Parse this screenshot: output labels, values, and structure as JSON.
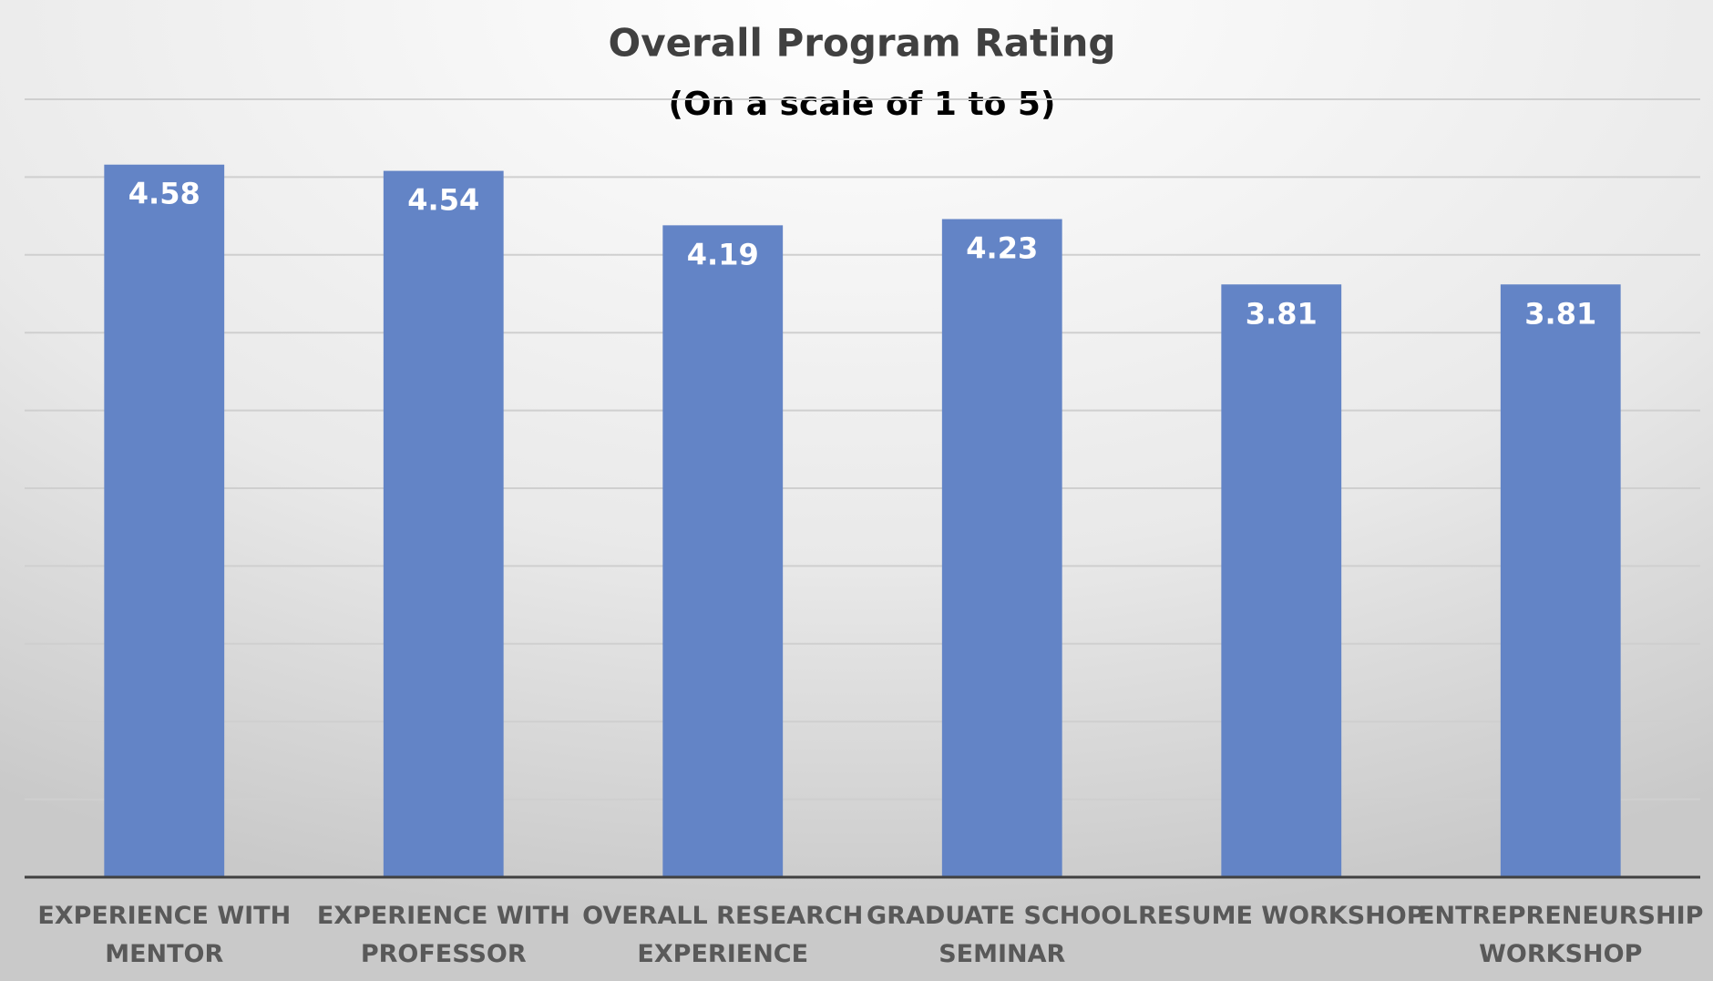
{
  "chart_data": {
    "type": "bar",
    "title": "Overall Program Rating",
    "subtitle": "(On a scale of 1 to 5)",
    "categories": [
      "EXPERIENCE WITH MENTOR",
      "EXPERIENCE WITH PROFESSOR",
      "OVERALL RESEARCH EXPERIENCE",
      "GRADUATE SCHOOL SEMINAR",
      "RESUME WORKSHOP",
      "ENTREPRENEURSHIP WORKSHOP"
    ],
    "values": [
      4.58,
      4.54,
      4.19,
      4.23,
      3.81,
      3.81
    ],
    "color": "#6384c6",
    "ylim": [
      0,
      5
    ],
    "yticks": [
      0,
      0.5,
      1,
      1.5,
      2,
      2.5,
      3,
      3.5,
      4,
      4.5,
      5
    ],
    "grid": true
  }
}
